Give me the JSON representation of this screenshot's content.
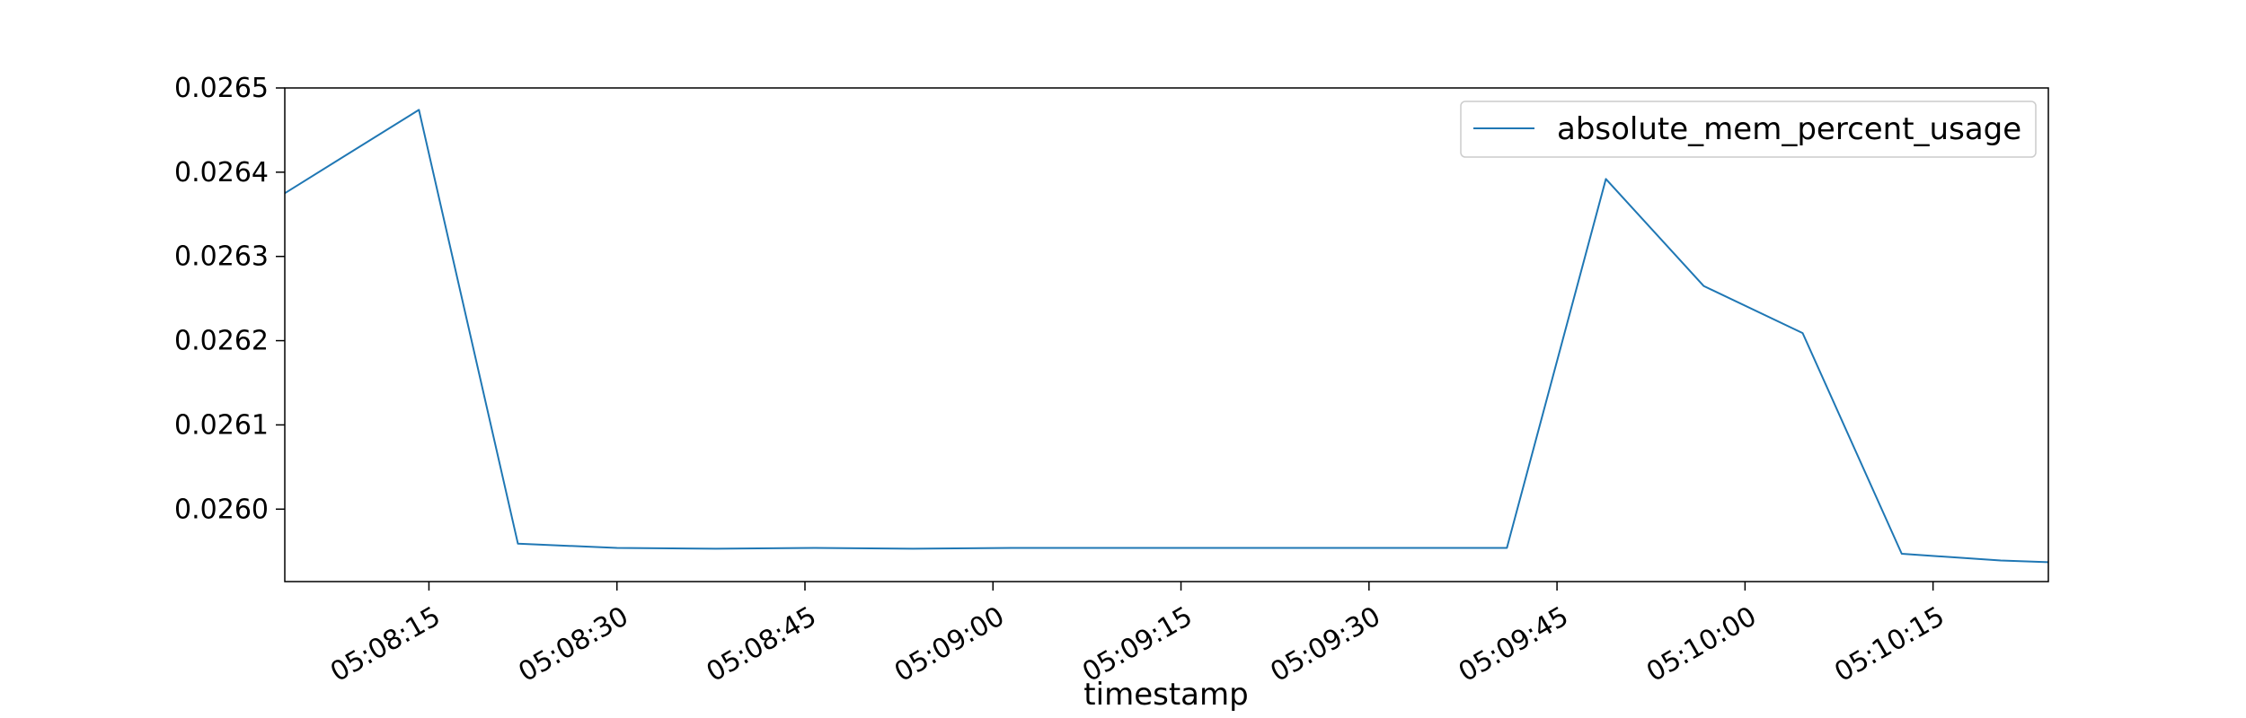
{
  "chart_data": {
    "type": "line",
    "title": "",
    "xlabel": "timestamp",
    "ylabel": "",
    "x_ticks": [
      "05:08:15",
      "05:08:30",
      "05:08:45",
      "05:09:00",
      "05:09:15",
      "05:09:30",
      "05:09:45",
      "05:10:00",
      "05:10:15"
    ],
    "x_tick_seconds": [
      495,
      510,
      525,
      540,
      555,
      570,
      585,
      600,
      615
    ],
    "xlim_seconds": [
      483.5,
      624.2
    ],
    "y_ticks": [
      "0.0260",
      "0.0261",
      "0.0262",
      "0.0263",
      "0.0264",
      "0.0265"
    ],
    "y_tick_values": [
      0.026,
      0.0261,
      0.0262,
      0.0263,
      0.0264,
      0.0265
    ],
    "ylim": [
      0.025914,
      0.0265
    ],
    "grid": false,
    "legend_position": "top-right",
    "series": [
      {
        "name": "absolute_mem_percent_usage",
        "color": "#1f77b4",
        "x_seconds": [
          483.5,
          494.2,
          502.1,
          510.0,
          517.9,
          525.8,
          533.6,
          541.5,
          549.4,
          557.3,
          565.2,
          573.1,
          581.0,
          588.9,
          596.7,
          604.6,
          612.5,
          620.4,
          624.2
        ],
        "y": [
          0.026375,
          0.026474,
          0.025959,
          0.025954,
          0.025953,
          0.025954,
          0.025953,
          0.025954,
          0.025954,
          0.025954,
          0.025954,
          0.025954,
          0.025954,
          0.026392,
          0.026265,
          0.026209,
          0.025947,
          0.025939,
          0.025937
        ]
      }
    ]
  }
}
